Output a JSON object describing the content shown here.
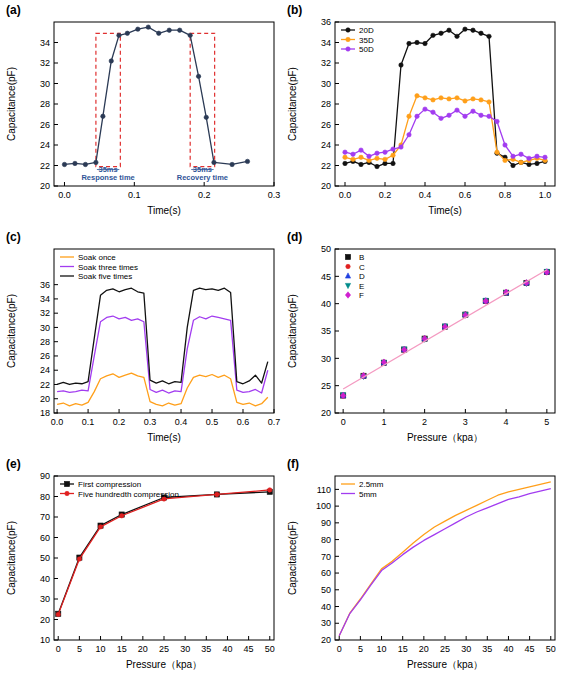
{
  "chart_data": [
    {
      "type": "line",
      "title": "(a)",
      "x_label": "Time(s)",
      "y_label": "Capacitance(pF)",
      "xlim": [
        -0.015,
        0.3
      ],
      "ylim": [
        20,
        36
      ],
      "xticks": [
        {
          "value": 0,
          "label": "0.0"
        },
        0.1,
        0.2,
        0.3
      ],
      "yticks": [
        20,
        22,
        24,
        26,
        28,
        30,
        32,
        34
      ],
      "marker": "circle",
      "x": [
        0,
        0.015,
        0.03,
        0.045,
        0.055,
        0.067,
        0.078,
        0.09,
        0.105,
        0.12,
        0.135,
        0.15,
        0.165,
        0.18,
        0.192,
        0.203,
        0.214,
        0.24,
        0.262
      ],
      "series": [
        {
          "color": "#2b3a55",
          "values": [
            22.1,
            22.2,
            22.1,
            22.3,
            26.8,
            32.2,
            34.7,
            34.9,
            35.3,
            35.5,
            34.9,
            35.2,
            35.2,
            34.7,
            30.7,
            26.7,
            22.3,
            22.1,
            22.4
          ]
        }
      ],
      "spans": [
        {
          "x0": 0.045,
          "x1": 0.08,
          "y0": 21.9,
          "y1": 34.9
        },
        {
          "x0": 0.18,
          "x1": 0.215,
          "y0": 21.9,
          "y1": 34.9
        }
      ],
      "annotations": [
        {
          "text": "35ms",
          "x": 0.0625,
          "y": 21.35
        },
        {
          "text": "Response time",
          "x": 0.0625,
          "y": 20.55
        },
        {
          "text": "35ms",
          "x": 0.1975,
          "y": 21.35
        },
        {
          "text": "Recovery time",
          "x": 0.1975,
          "y": 20.55
        }
      ]
    },
    {
      "type": "line",
      "title": "(b)",
      "x_label": "Time(s)",
      "y_label": "Capacitance(pF)",
      "xlim": [
        -0.05,
        1.05
      ],
      "ylim": [
        20,
        36
      ],
      "xticks": [
        {
          "value": 0,
          "label": "0.0"
        },
        0.2,
        0.4,
        0.6,
        0.8,
        {
          "value": 1,
          "label": "1.0"
        }
      ],
      "yticks": [
        20,
        22,
        24,
        26,
        28,
        30,
        32,
        34,
        36
      ],
      "legend": "upper left",
      "marker": "circle",
      "x": [
        0,
        0.04,
        0.08,
        0.12,
        0.16,
        0.2,
        0.24,
        0.28,
        0.32,
        0.36,
        0.4,
        0.44,
        0.48,
        0.52,
        0.56,
        0.6,
        0.64,
        0.68,
        0.72,
        0.76,
        0.8,
        0.84,
        0.88,
        0.92,
        0.96,
        1.0
      ],
      "series": [
        {
          "name": "20D",
          "color": "#111111",
          "values": [
            22.2,
            22.4,
            22.1,
            22.3,
            21.9,
            22.2,
            22.2,
            31.8,
            33.9,
            34.0,
            33.9,
            34.7,
            34.9,
            35.2,
            34.6,
            35.3,
            35.2,
            34.9,
            34.6,
            23.2,
            22.8,
            22.0,
            22.3,
            22.1,
            22.2,
            22.4
          ]
        },
        {
          "name": "35D",
          "color": "#ff9f1a",
          "values": [
            22.8,
            22.6,
            22.8,
            22.5,
            22.7,
            22.6,
            23.0,
            24.0,
            26.8,
            28.8,
            28.6,
            28.4,
            28.6,
            28.5,
            28.6,
            28.3,
            28.5,
            28.4,
            28.2,
            23.3,
            22.5,
            22.6,
            22.3,
            22.5,
            22.7,
            22.5
          ]
        },
        {
          "name": "50D",
          "color": "#a23cf0",
          "values": [
            23.3,
            23.1,
            23.5,
            22.9,
            23.2,
            23.3,
            23.6,
            23.8,
            25.0,
            26.8,
            27.5,
            27.2,
            26.6,
            26.9,
            27.4,
            26.8,
            27.3,
            26.9,
            26.8,
            26.3,
            24.0,
            22.9,
            23.1,
            22.7,
            22.9,
            22.8
          ]
        }
      ]
    },
    {
      "type": "line",
      "title": "(c)",
      "x_label": "Time(s)",
      "y_label": "Capacitance(pF)",
      "xlim": [
        -0.01,
        0.7
      ],
      "ylim": [
        18,
        41
      ],
      "xticks": [
        {
          "value": 0,
          "label": "0.0"
        },
        0.1,
        0.2,
        0.3,
        0.4,
        0.5,
        0.6,
        0.7
      ],
      "yticks": [
        18,
        20,
        22,
        24,
        26,
        28,
        30,
        32,
        34,
        36
      ],
      "legend": "upper left",
      "marker": "none",
      "x": [
        0,
        0.02,
        0.04,
        0.06,
        0.08,
        0.1,
        0.12,
        0.14,
        0.16,
        0.18,
        0.2,
        0.22,
        0.24,
        0.26,
        0.28,
        0.3,
        0.32,
        0.34,
        0.36,
        0.38,
        0.4,
        0.42,
        0.44,
        0.46,
        0.48,
        0.5,
        0.52,
        0.54,
        0.56,
        0.58,
        0.6,
        0.62,
        0.64,
        0.66,
        0.68
      ],
      "series": [
        {
          "name": "Soak once",
          "color": "#ff9f1a",
          "values": [
            19.2,
            19.4,
            19.0,
            19.3,
            19.1,
            19.5,
            21.0,
            22.8,
            23.2,
            23.5,
            23.0,
            23.3,
            23.6,
            23.2,
            23.0,
            19.6,
            19.2,
            19.0,
            19.4,
            19.1,
            19.3,
            21.5,
            23.0,
            23.3,
            23.1,
            23.4,
            23.0,
            23.3,
            22.8,
            19.5,
            19.2,
            19.4,
            19.0,
            19.3,
            20.2
          ]
        },
        {
          "name": "Soak three times",
          "color": "#a23cf0",
          "values": [
            21.0,
            21.1,
            20.9,
            21.0,
            21.2,
            21.1,
            26.0,
            30.8,
            31.4,
            31.6,
            31.2,
            31.4,
            31.0,
            31.2,
            30.8,
            21.3,
            20.9,
            21.2,
            20.8,
            21.1,
            21.0,
            27.0,
            31.0,
            31.5,
            31.2,
            31.6,
            31.4,
            31.2,
            31.0,
            21.2,
            20.9,
            21.0,
            21.3,
            20.8,
            24.0
          ]
        },
        {
          "name": "Soak five times",
          "color": "#111111",
          "values": [
            22.0,
            22.3,
            22.0,
            22.2,
            22.1,
            22.4,
            28.5,
            34.5,
            35.2,
            35.4,
            35.0,
            35.3,
            35.5,
            35.0,
            34.8,
            22.6,
            22.2,
            22.5,
            22.1,
            22.4,
            22.3,
            30.0,
            35.2,
            35.5,
            35.3,
            35.4,
            35.2,
            35.5,
            34.9,
            22.4,
            22.1,
            22.5,
            23.3,
            22.2,
            25.2
          ]
        }
      ]
    },
    {
      "type": "scatter",
      "title": "(d)",
      "x_label": "Pressure（kpa）",
      "y_label": "Capacitance(pF)",
      "xlim": [
        -0.2,
        5.2
      ],
      "ylim": [
        20,
        50
      ],
      "xticks": [
        0,
        1,
        2,
        3,
        4,
        5
      ],
      "yticks": [
        20,
        25,
        30,
        35,
        40,
        45,
        50
      ],
      "legend": "upper left",
      "series": [
        {
          "name": "B",
          "color": "#111111",
          "marker": "square",
          "x": [
            0,
            0.5,
            1,
            1.5,
            2,
            2.5,
            3,
            3.5,
            4,
            4.5,
            5
          ],
          "values": [
            23.2,
            26.8,
            29.2,
            31.6,
            33.6,
            35.8,
            38.0,
            40.5,
            42.0,
            43.8,
            45.8
          ]
        },
        {
          "name": "C",
          "color": "#e02020",
          "marker": "circle",
          "x": [
            0,
            0.5,
            1,
            1.5,
            2,
            2.5,
            3,
            3.5,
            4,
            4.5,
            5
          ],
          "values": [
            23.1,
            26.9,
            29.3,
            31.5,
            33.7,
            35.7,
            38.1,
            40.4,
            42.1,
            43.9,
            45.7
          ]
        },
        {
          "name": "D",
          "color": "#2040e0",
          "marker": "triangle",
          "x": [
            0,
            0.5,
            1,
            1.5,
            2,
            2.5,
            3,
            3.5,
            4,
            4.5,
            5
          ],
          "values": [
            23.2,
            26.8,
            29.2,
            31.6,
            33.6,
            35.8,
            38.0,
            40.5,
            42.0,
            43.8,
            45.8
          ]
        },
        {
          "name": "E",
          "color": "#008b8b",
          "marker": "triangle-down",
          "x": [
            0,
            0.5,
            1,
            1.5,
            2,
            2.5,
            3,
            3.5,
            4,
            4.5,
            5
          ],
          "values": [
            23.3,
            26.7,
            29.2,
            31.7,
            33.5,
            35.9,
            38.0,
            40.6,
            42.0,
            43.7,
            45.9
          ]
        },
        {
          "name": "F",
          "color": "#d020d0",
          "marker": "diamond",
          "x": [
            0,
            0.5,
            1,
            1.5,
            2,
            2.5,
            3,
            3.5,
            4,
            4.5,
            5
          ],
          "values": [
            23.2,
            26.8,
            29.3,
            31.6,
            33.6,
            35.8,
            37.9,
            40.5,
            42.1,
            43.8,
            45.8
          ]
        },
        {
          "type": "line",
          "color": "#f49ac1",
          "marker": "none",
          "x": [
            0,
            5
          ],
          "values": [
            24.4,
            46.2
          ]
        }
      ]
    },
    {
      "type": "line",
      "title": "(e)",
      "x_label": "Pressure（kpa）",
      "y_label": "Capacitance(pF)",
      "xlim": [
        -1,
        51
      ],
      "ylim": [
        10,
        90
      ],
      "xticks": [
        0,
        5,
        10,
        15,
        20,
        25,
        30,
        35,
        40,
        45,
        50
      ],
      "yticks": [
        10,
        20,
        30,
        40,
        50,
        60,
        70,
        80,
        90
      ],
      "legend": "upper left",
      "x": [
        0,
        5,
        10,
        15,
        25,
        37.5,
        50
      ],
      "series": [
        {
          "name": "First compression",
          "color": "#111111",
          "marker": "square",
          "values": [
            22.8,
            50.2,
            65.8,
            71.2,
            79.5,
            81.0,
            82.3
          ]
        },
        {
          "name": "Five hundredth compression.",
          "color": "#e02020",
          "marker": "circle",
          "values": [
            22.5,
            49.5,
            65.2,
            70.6,
            78.8,
            81.0,
            83.2
          ]
        }
      ]
    },
    {
      "type": "line",
      "title": "(f)",
      "x_label": "Pressure（kpa）",
      "y_label": "Capacitance(pF)",
      "xlim": [
        -1,
        51
      ],
      "ylim": [
        20,
        118
      ],
      "xticks": [
        0,
        5,
        10,
        15,
        20,
        25,
        30,
        35,
        40,
        45,
        50
      ],
      "yticks": [
        20,
        30,
        40,
        50,
        60,
        70,
        80,
        90,
        100,
        110
      ],
      "legend": "upper left",
      "marker": "none",
      "x": [
        0,
        2.5,
        5,
        7.5,
        10,
        12.5,
        15,
        17.5,
        20,
        22.5,
        25,
        27.5,
        30,
        32.5,
        35,
        37.5,
        40,
        42.5,
        45,
        47.5,
        50
      ],
      "series": [
        {
          "name": "2.5mm",
          "color": "#ff9f1a",
          "values": [
            22.5,
            36.0,
            44.5,
            53.5,
            62.5,
            67.0,
            72.5,
            78.0,
            83.0,
            87.5,
            91.0,
            94.5,
            97.5,
            100.5,
            103.5,
            106.5,
            108.5,
            110.0,
            111.5,
            113.0,
            114.5
          ]
        },
        {
          "name": "5mm",
          "color": "#a23cf0",
          "values": [
            22.5,
            35.8,
            44.0,
            53.0,
            61.5,
            66.0,
            71.0,
            75.5,
            79.5,
            83.0,
            86.5,
            90.0,
            93.5,
            96.5,
            99.0,
            101.5,
            104.0,
            105.5,
            107.5,
            109.0,
            110.5
          ]
        }
      ]
    }
  ]
}
